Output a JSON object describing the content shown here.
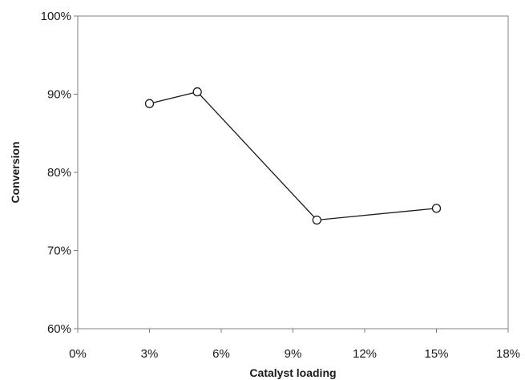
{
  "chart_data": {
    "type": "line",
    "title": "",
    "xlabel": "Catalyst loading",
    "ylabel": "Conversion",
    "xlim": [
      0,
      18
    ],
    "ylim": [
      60,
      100
    ],
    "x_ticks": [
      0,
      3,
      6,
      9,
      12,
      15,
      18
    ],
    "x_tick_labels": [
      "0%",
      "3%",
      "6%",
      "9%",
      "12%",
      "15%",
      "18%"
    ],
    "y_ticks": [
      60,
      70,
      80,
      90,
      100
    ],
    "y_tick_labels": [
      "60%",
      "70%",
      "80%",
      "90%",
      "100%"
    ],
    "grid": false,
    "series": [
      {
        "x": [
          3,
          5,
          10,
          15
        ],
        "y": [
          88.8,
          90.3,
          73.9,
          75.4
        ],
        "marker": "open-circle",
        "line_color": "#1a1a1a"
      }
    ]
  }
}
